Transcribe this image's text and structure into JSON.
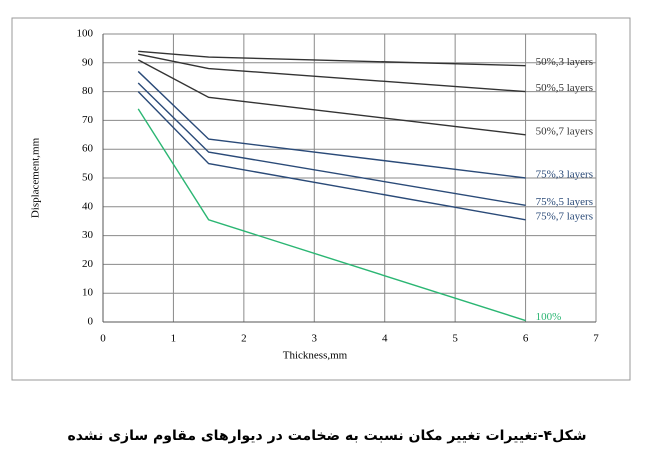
{
  "chart_data": {
    "type": "line",
    "ylabel": "Displacement,mm",
    "xlabel": "Thickness,mm",
    "caption": "شکل۴-تغییرات تغییر مکان نسبت به ضخامت در دیوارهای مقاوم سازی نشده",
    "x": [
      0.5,
      1.5,
      6
    ],
    "series": [
      {
        "name": "50%,3 layers",
        "color": "#333333",
        "values": [
          94,
          92,
          89
        ]
      },
      {
        "name": "50%,5 layers",
        "color": "#333333",
        "values": [
          93,
          88,
          80
        ]
      },
      {
        "name": "50%,7 layers",
        "color": "#333333",
        "values": [
          91,
          78,
          65
        ]
      },
      {
        "name": "75%,3 layers",
        "color": "#2a4a78",
        "values": [
          87,
          63.5,
          50
        ]
      },
      {
        "name": "75%,5 layers",
        "color": "#2a4a78",
        "values": [
          83,
          59,
          40.5
        ]
      },
      {
        "name": "75%,7 layers",
        "color": "#2a4a78",
        "values": [
          80,
          55,
          35.5
        ]
      },
      {
        "name": "100%",
        "color": "#2bb673",
        "values": [
          74,
          35.5,
          0.5
        ]
      }
    ],
    "xlim": [
      0,
      7
    ],
    "xticks": [
      0,
      1,
      2,
      3,
      4,
      5,
      6,
      7
    ],
    "ylim": [
      0,
      100
    ],
    "yticks": [
      0,
      10,
      20,
      30,
      40,
      50,
      60,
      70,
      80,
      90,
      100
    ],
    "grid": true
  }
}
